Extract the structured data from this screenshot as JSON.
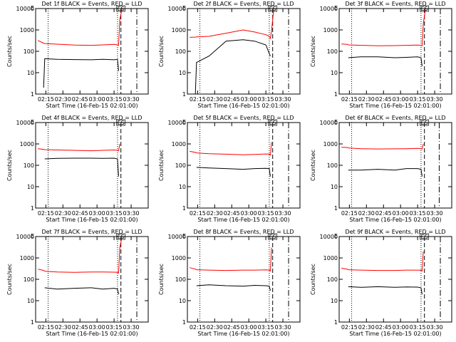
{
  "chart_data": [
    {
      "type": "line",
      "title": "Det 1f BLACK = Events, RED = LLD",
      "ylabel": "Counts/sec",
      "xlabel": "Start Time (16-Feb-15 02:01:00)",
      "log_y": true,
      "xlim": [
        "02:06",
        "03:45"
      ],
      "xticks": [
        "02:15",
        "02:30",
        "02:45",
        "03:00",
        "03:15",
        "03:30"
      ],
      "ylim": [
        1,
        10000
      ],
      "yticks": [
        1,
        10,
        100,
        1000,
        10000
      ],
      "annotations": [
        "E",
        "ES"
      ],
      "vlines": [
        {
          "x": "02:17",
          "style": "dotted"
        },
        {
          "x": "03:18",
          "style": "dotted"
        },
        {
          "x": "03:21",
          "style": "dashed"
        },
        {
          "x": "03:35",
          "style": "dashdot"
        }
      ],
      "x": [
        "02:08",
        "02:13",
        "02:14",
        "02:25",
        "02:40",
        "02:55",
        "03:05",
        "03:15",
        "03:18",
        "03:19",
        "03:20",
        "03:22"
      ],
      "series": [
        {
          "color": "#ff0000",
          "values": [
            320,
            240,
            230,
            215,
            195,
            190,
            200,
            210,
            200,
            190,
            3000,
            10000
          ]
        },
        {
          "color": "#000000",
          "values": [
            null,
            2,
            45,
            42,
            41,
            40,
            42,
            40,
            42,
            12,
            null,
            null
          ]
        }
      ]
    },
    {
      "type": "line",
      "title": "Det 2f BLACK = Events, RED = LLD",
      "ylabel": "Counts/sec",
      "xlabel": "Start Time (16-Feb-15 02:01:00)",
      "log_y": true,
      "xlim": [
        "02:06",
        "03:45"
      ],
      "xticks": [
        "02:15",
        "02:30",
        "02:45",
        "03:00",
        "03:15",
        "03:30"
      ],
      "ylim": [
        1,
        10000
      ],
      "yticks": [
        1,
        10,
        100,
        1000,
        10000
      ],
      "annotations": [
        "E",
        "ES"
      ],
      "vlines": [
        {
          "x": "02:17",
          "style": "dotted"
        },
        {
          "x": "03:18",
          "style": "dotted"
        },
        {
          "x": "03:21",
          "style": "dashed"
        },
        {
          "x": "03:35",
          "style": "dashdot"
        }
      ],
      "x": [
        "02:08",
        "02:13",
        "02:14",
        "02:25",
        "02:40",
        "02:55",
        "03:05",
        "03:15",
        "03:18",
        "03:19",
        "03:20",
        "03:22"
      ],
      "series": [
        {
          "color": "#ff0000",
          "values": [
            450,
            460,
            470,
            500,
            700,
            1000,
            800,
            600,
            500,
            400,
            900,
            10000
          ]
        },
        {
          "color": "#000000",
          "values": [
            null,
            1,
            30,
            60,
            300,
            350,
            300,
            200,
            80,
            60,
            null,
            null
          ]
        }
      ]
    },
    {
      "type": "line",
      "title": "Det 3f BLACK = Events, RED = LLD",
      "ylabel": "Counts/sec",
      "xlabel": "Start Time (16-Feb-15 02:01:00)",
      "log_y": true,
      "xlim": [
        "02:06",
        "03:45"
      ],
      "xticks": [
        "02:15",
        "02:30",
        "02:45",
        "03:00",
        "03:15",
        "03:30"
      ],
      "ylim": [
        1,
        10000
      ],
      "yticks": [
        1,
        10,
        100,
        1000,
        10000
      ],
      "annotations": [
        "E",
        "ES"
      ],
      "vlines": [
        {
          "x": "02:17",
          "style": "dotted"
        },
        {
          "x": "03:18",
          "style": "dotted"
        },
        {
          "x": "03:21",
          "style": "dashed"
        },
        {
          "x": "03:35",
          "style": "dashdot"
        }
      ],
      "x": [
        "02:08",
        "02:13",
        "02:14",
        "02:25",
        "02:40",
        "02:55",
        "03:05",
        "03:15",
        "03:18",
        "03:19",
        "03:20",
        "03:22"
      ],
      "series": [
        {
          "color": "#ff0000",
          "values": [
            220,
            210,
            200,
            190,
            180,
            185,
            190,
            195,
            190,
            180,
            2000,
            10000
          ]
        },
        {
          "color": "#000000",
          "values": [
            null,
            null,
            50,
            55,
            55,
            50,
            52,
            55,
            50,
            20,
            null,
            null
          ]
        }
      ]
    },
    {
      "type": "line",
      "title": "Det 4f BLACK = Events, RED = LLD",
      "ylabel": "Counts/sec",
      "xlabel": "Start Time (16-Feb-15 02:01:00)",
      "log_y": true,
      "xlim": [
        "02:06",
        "03:45"
      ],
      "xticks": [
        "02:15",
        "02:30",
        "02:45",
        "03:00",
        "03:15",
        "03:30"
      ],
      "ylim": [
        1,
        10000
      ],
      "yticks": [
        1,
        10,
        100,
        1000,
        10000
      ],
      "annotations": [
        "E",
        "ES"
      ],
      "vlines": [
        {
          "x": "02:17",
          "style": "dotted"
        },
        {
          "x": "03:18",
          "style": "dotted"
        },
        {
          "x": "03:21",
          "style": "dashed"
        }
      ],
      "x": [
        "02:08",
        "02:13",
        "02:14",
        "02:25",
        "02:40",
        "02:55",
        "03:05",
        "03:15",
        "03:18",
        "03:19",
        "03:20",
        "03:22"
      ],
      "series": [
        {
          "color": "#ff0000",
          "values": [
            600,
            560,
            540,
            520,
            500,
            480,
            500,
            520,
            500,
            480,
            1000,
            null
          ]
        },
        {
          "color": "#000000",
          "values": [
            null,
            null,
            200,
            210,
            215,
            215,
            210,
            215,
            200,
            30,
            null,
            null
          ]
        }
      ]
    },
    {
      "type": "line",
      "title": "Det 5f BLACK = Events, RED = LLD",
      "ylabel": "Counts/sec",
      "xlabel": "Start Time (16-Feb-15 02:01:00)",
      "log_y": true,
      "xlim": [
        "02:06",
        "03:45"
      ],
      "xticks": [
        "02:15",
        "02:30",
        "02:45",
        "03:00",
        "03:15",
        "03:30"
      ],
      "ylim": [
        1,
        10000
      ],
      "yticks": [
        1,
        10,
        100,
        1000,
        10000
      ],
      "annotations": [
        "E",
        "ES"
      ],
      "vlines": [
        {
          "x": "02:17",
          "style": "dotted"
        },
        {
          "x": "03:18",
          "style": "dotted"
        },
        {
          "x": "03:21",
          "style": "dashed"
        },
        {
          "x": "03:35",
          "style": "dashdot"
        }
      ],
      "x": [
        "02:08",
        "02:13",
        "02:14",
        "02:25",
        "02:40",
        "02:55",
        "03:05",
        "03:15",
        "03:18",
        "03:19",
        "03:20",
        "03:22"
      ],
      "series": [
        {
          "color": "#ff0000",
          "values": [
            450,
            400,
            380,
            350,
            330,
            310,
            320,
            340,
            330,
            300,
            1200,
            null
          ]
        },
        {
          "color": "#000000",
          "values": [
            null,
            null,
            80,
            75,
            70,
            65,
            70,
            72,
            70,
            30,
            null,
            null
          ]
        }
      ]
    },
    {
      "type": "line",
      "title": "Det 6f BLACK = Events, RED = LLD",
      "ylabel": "Counts/sec",
      "xlabel": "Start Time (16-Feb-15 02:01:00)",
      "log_y": true,
      "xlim": [
        "02:06",
        "03:45"
      ],
      "xticks": [
        "02:15",
        "02:30",
        "02:45",
        "03:00",
        "03:15",
        "03:30"
      ],
      "ylim": [
        1,
        10000
      ],
      "yticks": [
        1,
        10,
        100,
        1000,
        10000
      ],
      "annotations": [
        "E",
        "ES"
      ],
      "vlines": [
        {
          "x": "02:17",
          "style": "dotted"
        },
        {
          "x": "03:18",
          "style": "dotted"
        },
        {
          "x": "03:21",
          "style": "dashed"
        },
        {
          "x": "03:34",
          "style": "dashdot"
        }
      ],
      "x": [
        "02:08",
        "02:13",
        "02:14",
        "02:25",
        "02:40",
        "02:55",
        "03:05",
        "03:15",
        "03:18",
        "03:19",
        "03:20",
        "03:22"
      ],
      "series": [
        {
          "color": "#ff0000",
          "values": [
            700,
            680,
            650,
            600,
            580,
            590,
            600,
            620,
            600,
            580,
            1000,
            null
          ]
        },
        {
          "color": "#000000",
          "values": [
            null,
            null,
            60,
            60,
            65,
            60,
            70,
            70,
            65,
            30,
            null,
            null
          ]
        }
      ]
    },
    {
      "type": "line",
      "title": "Det 7f BLACK = Events, RED = LLD",
      "ylabel": "Counts/sec",
      "xlabel": "Start Time (16-Feb-15 02:01:00)",
      "log_y": true,
      "xlim": [
        "02:06",
        "03:45"
      ],
      "xticks": [
        "02:15",
        "02:30",
        "02:45",
        "03:00",
        "03:15",
        "03:30"
      ],
      "ylim": [
        1,
        10000
      ],
      "yticks": [
        1,
        10,
        100,
        1000,
        10000
      ],
      "annotations": [
        "E",
        "ES"
      ],
      "vlines": [
        {
          "x": "02:17",
          "style": "dotted"
        },
        {
          "x": "03:18",
          "style": "dotted"
        },
        {
          "x": "03:21",
          "style": "dashed"
        },
        {
          "x": "03:35",
          "style": "dashdot"
        }
      ],
      "x": [
        "02:08",
        "02:13",
        "02:14",
        "02:25",
        "02:40",
        "02:55",
        "03:05",
        "03:15",
        "03:18",
        "03:19",
        "03:20",
        "03:22"
      ],
      "series": [
        {
          "color": "#ff0000",
          "values": [
            300,
            260,
            240,
            220,
            210,
            220,
            220,
            215,
            210,
            200,
            3000,
            10000
          ]
        },
        {
          "color": "#000000",
          "values": [
            null,
            null,
            40,
            35,
            38,
            40,
            35,
            38,
            35,
            20,
            null,
            null
          ]
        }
      ]
    },
    {
      "type": "line",
      "title": "Det 8f BLACK = Events, RED = LLD",
      "ylabel": "Counts/sec",
      "xlabel": "Start Time (16-Feb-15 02:01:00)",
      "log_y": true,
      "xlim": [
        "02:06",
        "03:45"
      ],
      "xticks": [
        "02:15",
        "02:30",
        "02:45",
        "03:00",
        "03:15",
        "03:30"
      ],
      "ylim": [
        1,
        10000
      ],
      "yticks": [
        1,
        10,
        100,
        1000,
        10000
      ],
      "annotations": [
        "E",
        "ES"
      ],
      "vlines": [
        {
          "x": "02:17",
          "style": "dotted"
        },
        {
          "x": "03:18",
          "style": "dotted"
        },
        {
          "x": "03:21",
          "style": "dashed"
        },
        {
          "x": "03:35",
          "style": "dashdot"
        }
      ],
      "x": [
        "02:08",
        "02:13",
        "02:14",
        "02:25",
        "02:40",
        "02:55",
        "03:05",
        "03:15",
        "03:18",
        "03:19",
        "03:20",
        "03:22"
      ],
      "series": [
        {
          "color": "#ff0000",
          "values": [
            350,
            300,
            280,
            270,
            260,
            270,
            270,
            275,
            270,
            250,
            3000,
            null
          ]
        },
        {
          "color": "#000000",
          "values": [
            null,
            null,
            50,
            55,
            50,
            48,
            52,
            50,
            48,
            30,
            null,
            null
          ]
        }
      ]
    },
    {
      "type": "line",
      "title": "Det 9f BLACK = Events, RED = LLD",
      "ylabel": "Counts/sec",
      "xlabel": "Start Time (16-Feb-15 02:01:00)",
      "log_y": true,
      "xlim": [
        "02:06",
        "03:45"
      ],
      "xticks": [
        "02:15",
        "02:30",
        "02:45",
        "03:00",
        "03:15",
        "03:30"
      ],
      "ylim": [
        1,
        10000
      ],
      "yticks": [
        1,
        10,
        100,
        1000,
        10000
      ],
      "annotations": [
        "E",
        "ES"
      ],
      "vlines": [
        {
          "x": "02:17",
          "style": "dotted"
        },
        {
          "x": "03:18",
          "style": "dotted"
        },
        {
          "x": "03:21",
          "style": "dashed"
        },
        {
          "x": "03:35",
          "style": "dashdot"
        }
      ],
      "x": [
        "02:08",
        "02:13",
        "02:14",
        "02:25",
        "02:40",
        "02:55",
        "03:05",
        "03:15",
        "03:18",
        "03:19",
        "03:20",
        "03:22"
      ],
      "series": [
        {
          "color": "#ff0000",
          "values": [
            330,
            300,
            280,
            270,
            260,
            260,
            270,
            270,
            265,
            250,
            2000,
            null
          ]
        },
        {
          "color": "#000000",
          "values": [
            null,
            null,
            45,
            42,
            45,
            42,
            44,
            43,
            40,
            20,
            null,
            null
          ]
        }
      ]
    }
  ]
}
